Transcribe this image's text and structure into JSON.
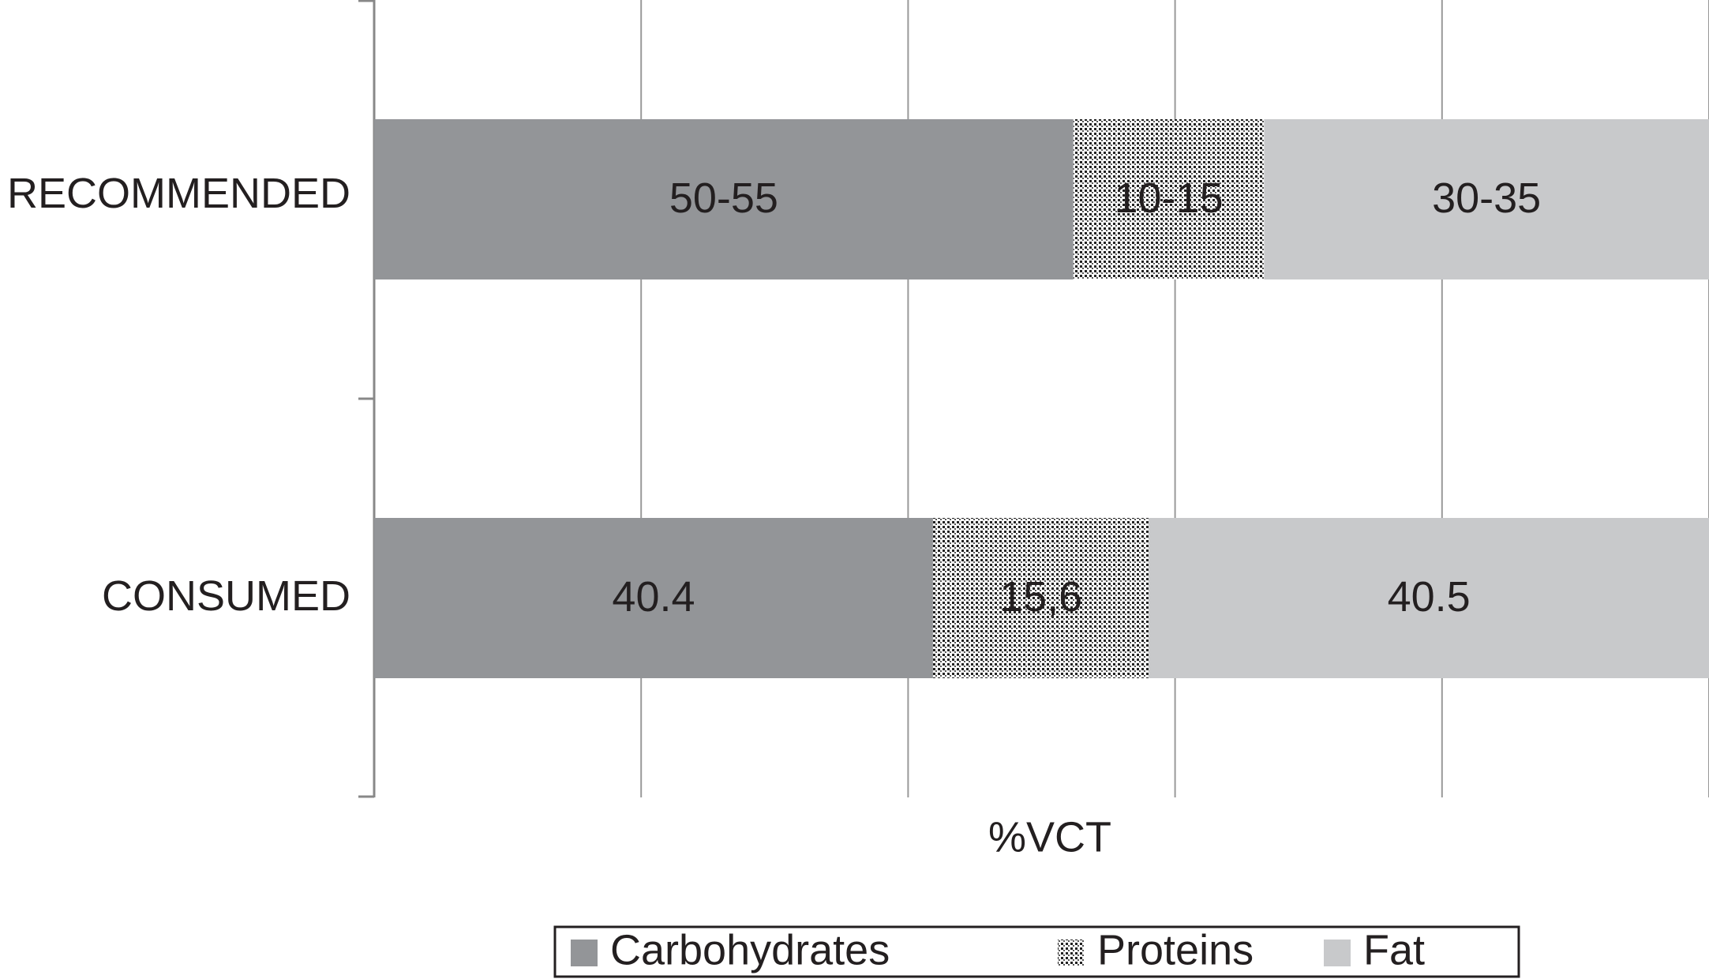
{
  "chart_data": {
    "type": "bar",
    "orientation": "horizontal",
    "stacked": true,
    "normalize": true,
    "x_label": "%VCT",
    "categories": [
      "RECOMMENDED",
      "CONSUMED"
    ],
    "series": [
      {
        "name": "Carbohydrates",
        "color": "#939598",
        "values": [
          55,
          40.4
        ],
        "value_labels": [
          "50-55",
          "40.4"
        ]
      },
      {
        "name": "Proteins",
        "color": "dots",
        "values": [
          15,
          15.6
        ],
        "value_labels": [
          "10-15",
          "15,6"
        ]
      },
      {
        "name": "Fat",
        "color": "#c8c9cb",
        "values": [
          35,
          40.5
        ],
        "value_labels": [
          "30-35",
          "40.5"
        ]
      }
    ],
    "xlim": [
      0,
      100
    ],
    "xticks": [
      0,
      20,
      40,
      60,
      80,
      100
    ],
    "tick_labels": false,
    "grid": true,
    "legend": "bottom"
  }
}
